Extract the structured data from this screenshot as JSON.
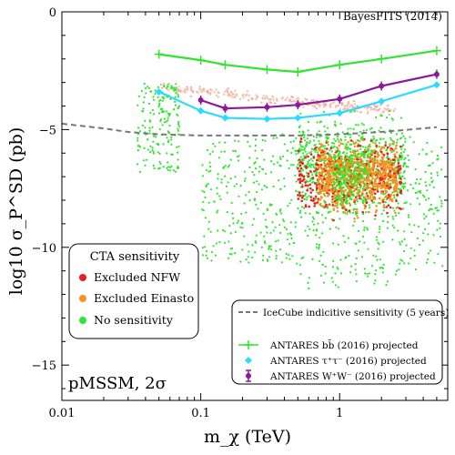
{
  "chart_data": {
    "type": "scatter",
    "title": "",
    "xlabel": "m_χ (TeV)",
    "ylabel": "log10 σ_P^SD (pb)",
    "xscale": "log",
    "xlim": [
      0.01,
      6
    ],
    "ylim": [
      -16.5,
      0
    ],
    "x_ticks": [
      0.01,
      0.1,
      1
    ],
    "x_tick_labels": [
      "0.01",
      "0.1",
      "1"
    ],
    "y_ticks": [
      0,
      -5,
      -10,
      -15
    ],
    "y_tick_labels": [
      "0",
      "−5",
      "−10",
      "−15"
    ],
    "corner_annotation": "BayesFITS (2014)",
    "panel_annotation": "pMSSM, 2σ",
    "cta_legend": {
      "title": "CTA sensitivity",
      "position": "lower-left",
      "entries": [
        {
          "label": "Excluded NFW",
          "color": "#ee1c1c"
        },
        {
          "label": "Excluded Einasto",
          "color": "#f7931e"
        },
        {
          "label": "No sensitivity",
          "color": "#2ee62e"
        }
      ]
    },
    "limits_legend": {
      "position": "lower-right",
      "entries": [
        {
          "label": "IceCube indicitive sensitivity (5 years)",
          "color": "#777777",
          "style": "dashed"
        },
        {
          "label": "ANTARES bb̄ (2016) projected",
          "color": "#2ee62e",
          "marker": "plus"
        },
        {
          "label": "ANTARES τ⁺τ⁻ (2016) projected",
          "color": "#29dcff",
          "marker": "diamond"
        },
        {
          "label": "ANTARES W⁺W⁻ (2016) projected",
          "color": "#8b1a9b",
          "marker": "errorbar"
        }
      ]
    },
    "series": [
      {
        "name": "ANTARES bb̄ (2016) projected",
        "color": "#2ee62e",
        "x": [
          0.05,
          0.1,
          0.15,
          0.3,
          0.5,
          1.0,
          2.0,
          5.0
        ],
        "y": [
          -1.8,
          -2.05,
          -2.25,
          -2.45,
          -2.55,
          -2.25,
          -2.0,
          -1.65
        ]
      },
      {
        "name": "ANTARES τ⁺τ⁻ (2016) projected",
        "color": "#29dcff",
        "x": [
          0.05,
          0.1,
          0.15,
          0.3,
          0.5,
          1.0,
          2.0,
          5.0
        ],
        "y": [
          -3.4,
          -4.2,
          -4.5,
          -4.55,
          -4.5,
          -4.3,
          -3.8,
          -3.1
        ]
      },
      {
        "name": "ANTARES W⁺W⁻ (2016) projected",
        "color": "#8b1a9b",
        "x": [
          0.1,
          0.15,
          0.3,
          0.5,
          1.0,
          2.0,
          5.0
        ],
        "y": [
          -3.75,
          -4.1,
          -4.05,
          -3.95,
          -3.7,
          -3.15,
          -2.65
        ]
      },
      {
        "name": "IceCube indicitive sensitivity (5 years)",
        "color": "#777777",
        "x": [
          0.01,
          0.02,
          0.03,
          0.05,
          0.1,
          0.2,
          0.5,
          1.0,
          2.0,
          5.0
        ],
        "y": [
          -4.75,
          -4.95,
          -5.1,
          -5.2,
          -5.25,
          -5.25,
          -5.25,
          -5.2,
          -5.1,
          -4.9
        ]
      }
    ],
    "scatter_regions": {
      "excluded_nfw": {
        "color": "#ee1c1c",
        "x_range": [
          0.5,
          2.8
        ],
        "y_range": [
          -10.3,
          -4.8
        ],
        "count": 420
      },
      "excluded_einasto": {
        "color": "#f7931e",
        "x_range": [
          0.7,
          2.6
        ],
        "y_range": [
          -10.0,
          -4.9
        ],
        "count": 650
      },
      "no_sensitivity": {
        "color": "#2ee62e",
        "x_range": [
          0.03,
          6.0
        ],
        "y_range": [
          -12.0,
          -3.0
        ],
        "count": 1500
      },
      "faded_band": {
        "color": "#f5c6a8",
        "x_range": [
          0.05,
          2.5
        ],
        "y_range": [
          -4.5,
          -3.0
        ],
        "count": 260
      }
    }
  }
}
